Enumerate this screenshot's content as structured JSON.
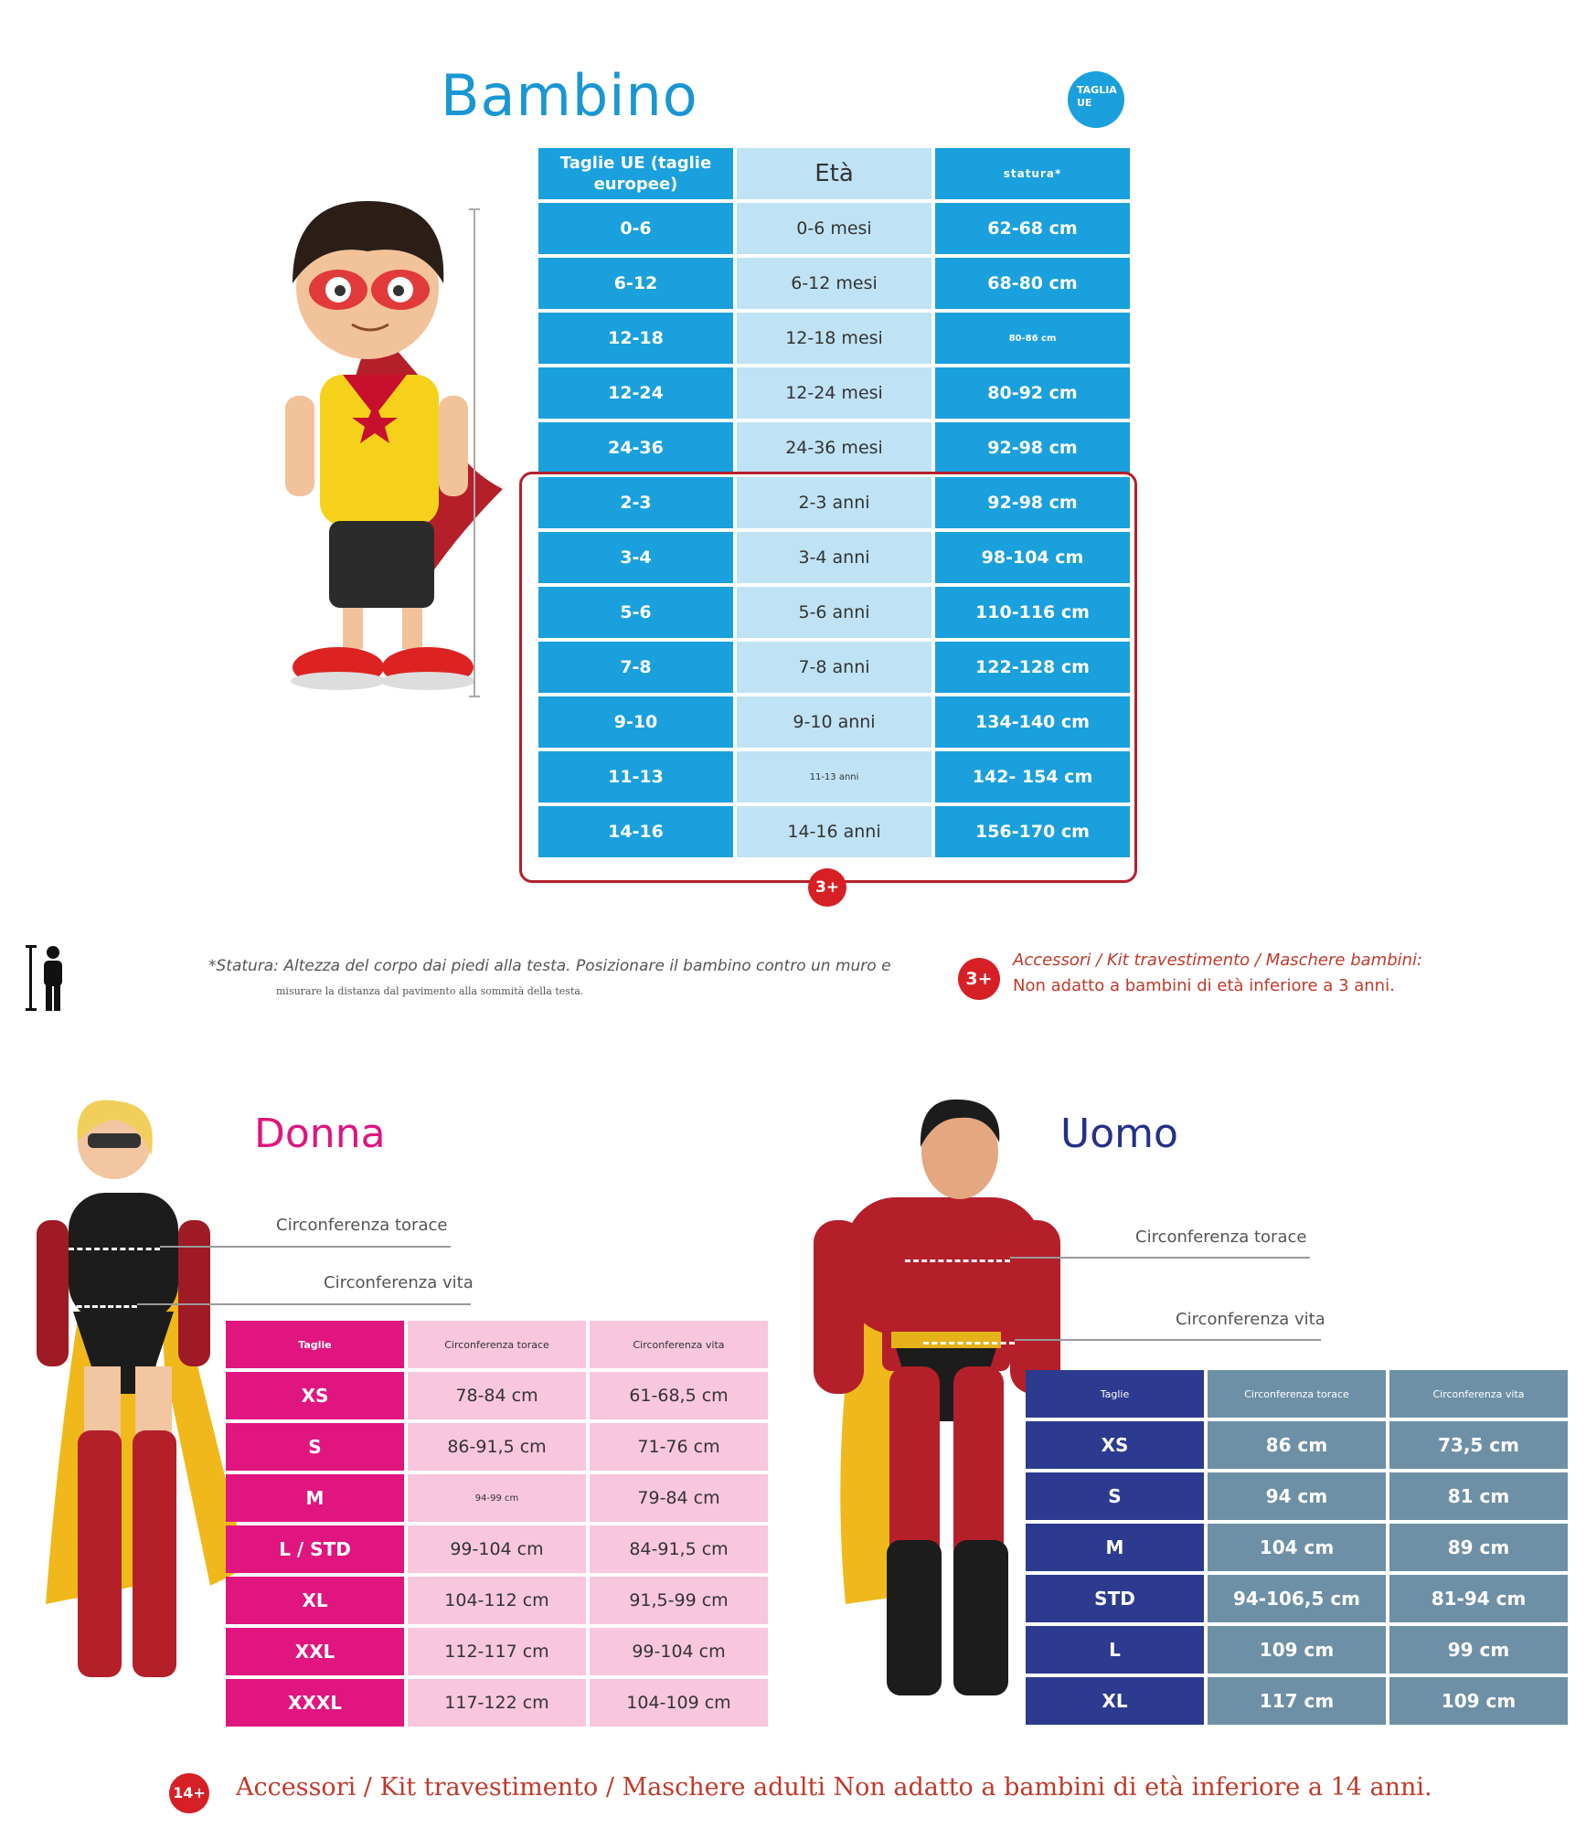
{
  "bambino": {
    "title": "Bambino",
    "badge": "TAGLIA UE",
    "headers": [
      "Taglie UE (taglie europee)",
      "Età",
      "statura*"
    ],
    "rows": [
      [
        "0-6",
        "0-6 mesi",
        "62-68 cm"
      ],
      [
        "6-12",
        "6-12 mesi",
        "68-80 cm"
      ],
      [
        "12-18",
        "12-18 mesi",
        "80-86 cm"
      ],
      [
        "12-24",
        "12-24 mesi",
        "80-92 cm"
      ],
      [
        "24-36",
        "24-36 mesi",
        "92-98 cm"
      ],
      [
        "2-3",
        "2-3 anni",
        "92-98 cm"
      ],
      [
        "3-4",
        "3-4 anni",
        "98-104 cm"
      ],
      [
        "5-6",
        "5-6 anni",
        "110-116 cm"
      ],
      [
        "7-8",
        "7-8 anni",
        "122-128 cm"
      ],
      [
        "9-10",
        "9-10 anni",
        "134-140 cm"
      ],
      [
        "11-13",
        "11-13 anni",
        "142- 154 cm"
      ],
      [
        "14-16",
        "14-16 anni",
        "156-170 cm"
      ]
    ],
    "age_badge": "3+",
    "note_line1": "*Statura: Altezza del corpo dai piedi alla testa. Posizionare il bambino contro un muro e",
    "note_line2": "misurare la distanza dal pavimento alla sommità della testa.",
    "warning_badge": "3+",
    "warning_line1": "Accessori / Kit travestimento / Maschere bambini:",
    "warning_line2": "Non adatto a bambini di età inferiore a 3 anni."
  },
  "donna": {
    "title": "Donna",
    "label_torace": "Circonferenza torace",
    "label_vita": "Circonferenza vita",
    "headers": [
      "Taglie",
      "Circonferenza torace",
      "Circonferenza vita"
    ],
    "rows": [
      [
        "XS",
        "78-84 cm",
        "61-68,5 cm"
      ],
      [
        "S",
        "86-91,5 cm",
        "71-76 cm"
      ],
      [
        "M",
        "94-99 cm",
        "79-84 cm"
      ],
      [
        "L / STD",
        "99-104 cm",
        "84-91,5 cm"
      ],
      [
        "XL",
        "104-112 cm",
        "91,5-99 cm"
      ],
      [
        "XXL",
        "112-117 cm",
        "99-104 cm"
      ],
      [
        "XXXL",
        "117-122 cm",
        "104-109 cm"
      ]
    ]
  },
  "uomo": {
    "title": "Uomo",
    "label_torace": "Circonferenza torace",
    "label_vita": "Circonferenza vita",
    "headers": [
      "Taglie",
      "Circonferenza torace",
      "Circonferenza vita"
    ],
    "rows": [
      [
        "XS",
        "86 cm",
        "73,5 cm"
      ],
      [
        "S",
        "94 cm",
        "81 cm"
      ],
      [
        "M",
        "104 cm",
        "89 cm"
      ],
      [
        "STD",
        "94-106,5 cm",
        "81-94 cm"
      ],
      [
        "L",
        "109 cm",
        "99 cm"
      ],
      [
        "XL",
        "117 cm",
        "109 cm"
      ]
    ]
  },
  "footer": {
    "badge": "14+",
    "warning": "Accessori / Kit travestimento / Maschere adulti Non adatto a bambini di età inferiore a 14 anni."
  },
  "colors": {
    "kid_blue": "#1aa0dc",
    "kid_light": "#bfe3f5",
    "woman_pink": "#e0157f",
    "woman_light": "#f8c6dd",
    "man_navy": "#2c3a8f",
    "man_steel": "#6e90a6",
    "warning_red": "#d71f26"
  }
}
